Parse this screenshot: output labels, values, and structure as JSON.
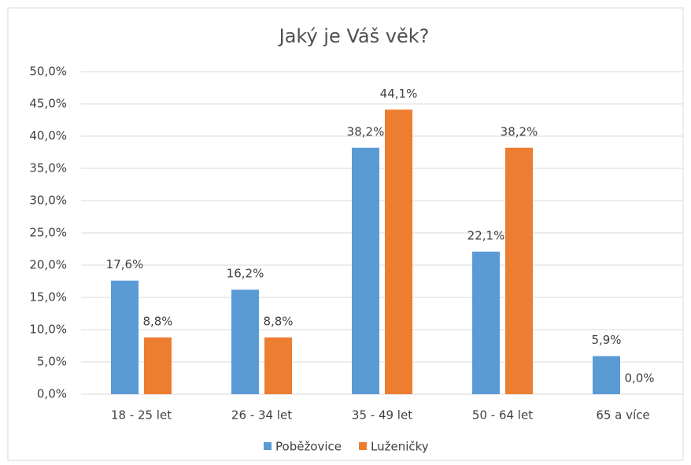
{
  "chart_data": {
    "type": "bar",
    "title": "Jaký je Váš věk?",
    "categories": [
      "18 - 25 let",
      "26 - 34 let",
      "35 - 49 let",
      "50 - 64 let",
      "65 a více"
    ],
    "series": [
      {
        "name": "Poběžovice",
        "color": "#5b9bd5",
        "values": [
          17.6,
          16.2,
          38.2,
          22.1,
          5.9
        ],
        "value_labels": [
          "17,6%",
          "16,2%",
          "38,2%",
          "22,1%",
          "5,9%"
        ]
      },
      {
        "name": "Luženičky",
        "color": "#ed7d31",
        "values": [
          8.8,
          8.8,
          44.1,
          38.2,
          0.0
        ],
        "value_labels": [
          "8,8%",
          "8,8%",
          "44,1%",
          "38,2%",
          "0,0%"
        ]
      }
    ],
    "ylim": [
      0,
      50
    ],
    "yticks": [
      {
        "value": 0,
        "label": "0,0%"
      },
      {
        "value": 5,
        "label": "5,0%"
      },
      {
        "value": 10,
        "label": "10,0%"
      },
      {
        "value": 15,
        "label": "15,0%"
      },
      {
        "value": 20,
        "label": "20,0%"
      },
      {
        "value": 25,
        "label": "25,0%"
      },
      {
        "value": 30,
        "label": "30,0%"
      },
      {
        "value": 35,
        "label": "35,0%"
      },
      {
        "value": 40,
        "label": "40,0%"
      },
      {
        "value": 45,
        "label": "45,0%"
      },
      {
        "value": 50,
        "label": "50,0%"
      }
    ],
    "grid": true,
    "legend": "bottom"
  }
}
